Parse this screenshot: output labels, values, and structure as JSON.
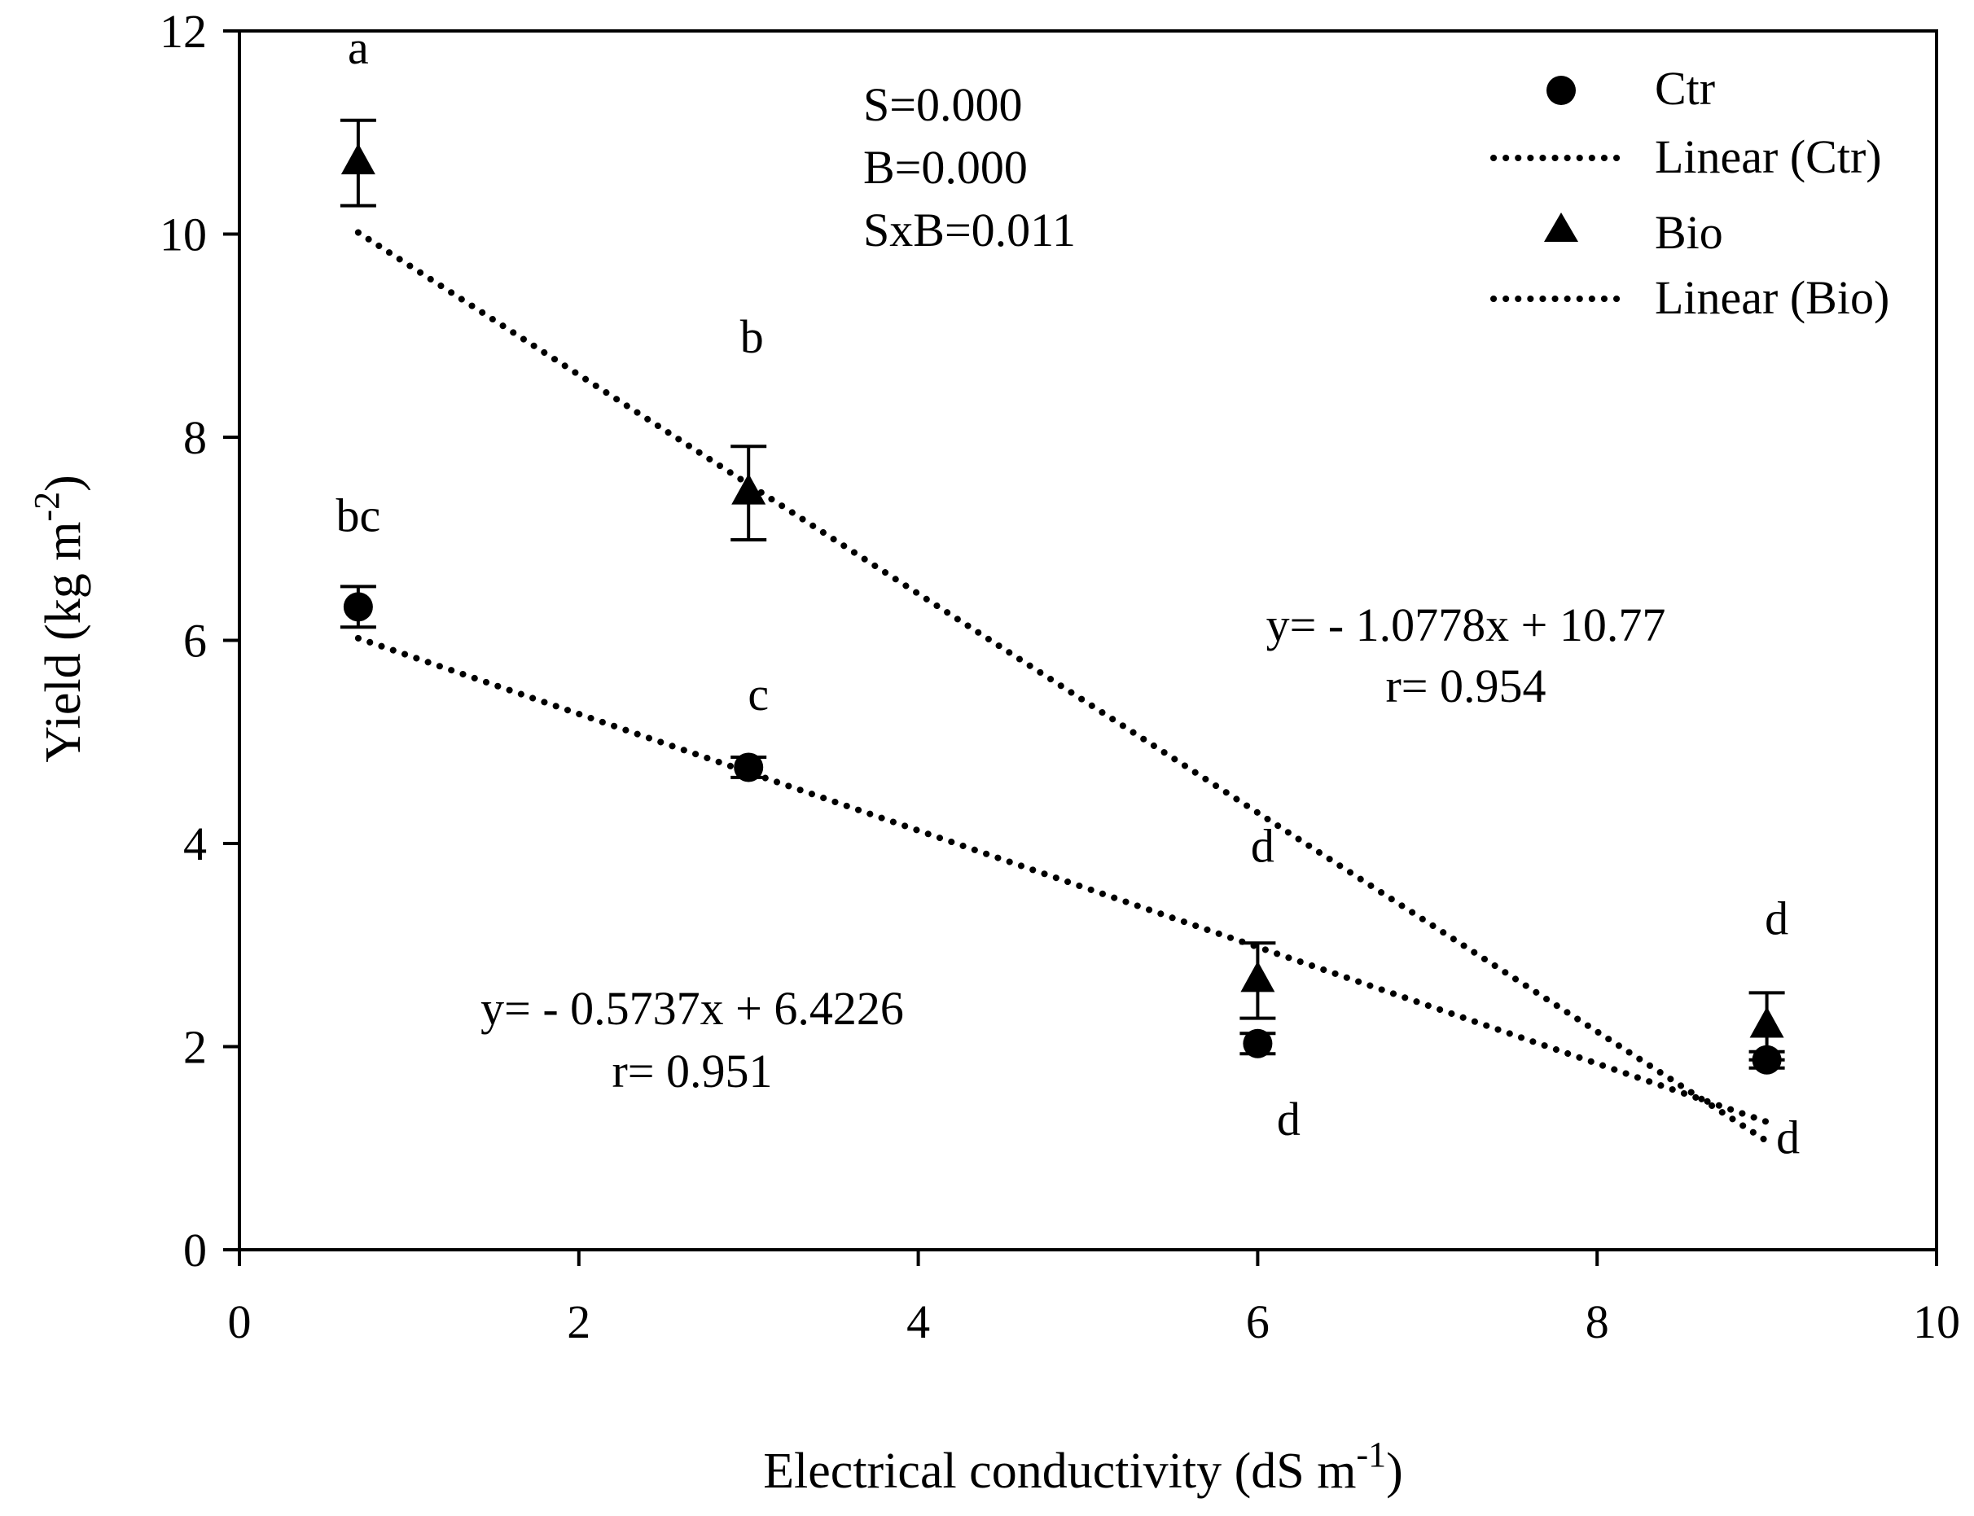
{
  "chart_data": {
    "type": "scatter",
    "title": "",
    "xlabel": "Electrical conductivity (dS m",
    "xlabel_sup": "-1",
    "xlabel_end": ")",
    "ylabel": "Yield (kg m",
    "ylabel_sup": "-2",
    "ylabel_end": ")",
    "xlim": [
      0,
      10
    ],
    "ylim": [
      0,
      12
    ],
    "xticks": [
      0,
      2,
      4,
      6,
      8,
      10
    ],
    "yticks": [
      0,
      2,
      4,
      6,
      8,
      10,
      12
    ],
    "grid": false,
    "legend_position": "top-right",
    "series": [
      {
        "name": "Ctr",
        "marker": "circle",
        "x": [
          0.7,
          3,
          6,
          9
        ],
        "y": [
          6.33,
          4.75,
          2.03,
          1.87
        ],
        "err": [
          0.2,
          0.1,
          0.1,
          0.08
        ],
        "letters": [
          "bc",
          "c",
          "d",
          "d"
        ],
        "trendline_name": "Linear (Ctr)",
        "trendline": {
          "slope": -0.5737,
          "intercept": 6.4226,
          "x_range": [
            0.7,
            9
          ]
        },
        "equation": "y= - 0.5737x + 6.4226",
        "r_text": "r= 0.951"
      },
      {
        "name": "Bio",
        "marker": "triangle",
        "x": [
          0.7,
          3,
          6,
          9
        ],
        "y": [
          10.7,
          7.45,
          2.65,
          2.2
        ],
        "err": [
          0.42,
          0.46,
          0.37,
          0.33
        ],
        "letters": [
          "a",
          "b",
          "d",
          "d"
        ],
        "trendline_name": "Linear (Bio)",
        "trendline": {
          "slope": -1.0778,
          "intercept": 10.77,
          "x_range": [
            0.7,
            9
          ]
        },
        "equation": "y= - 1.0778x + 10.77",
        "r_text": "r= 0.954"
      }
    ],
    "annotations": [
      "S=0.000",
      "B=0.000",
      "SxB=0.011"
    ]
  }
}
